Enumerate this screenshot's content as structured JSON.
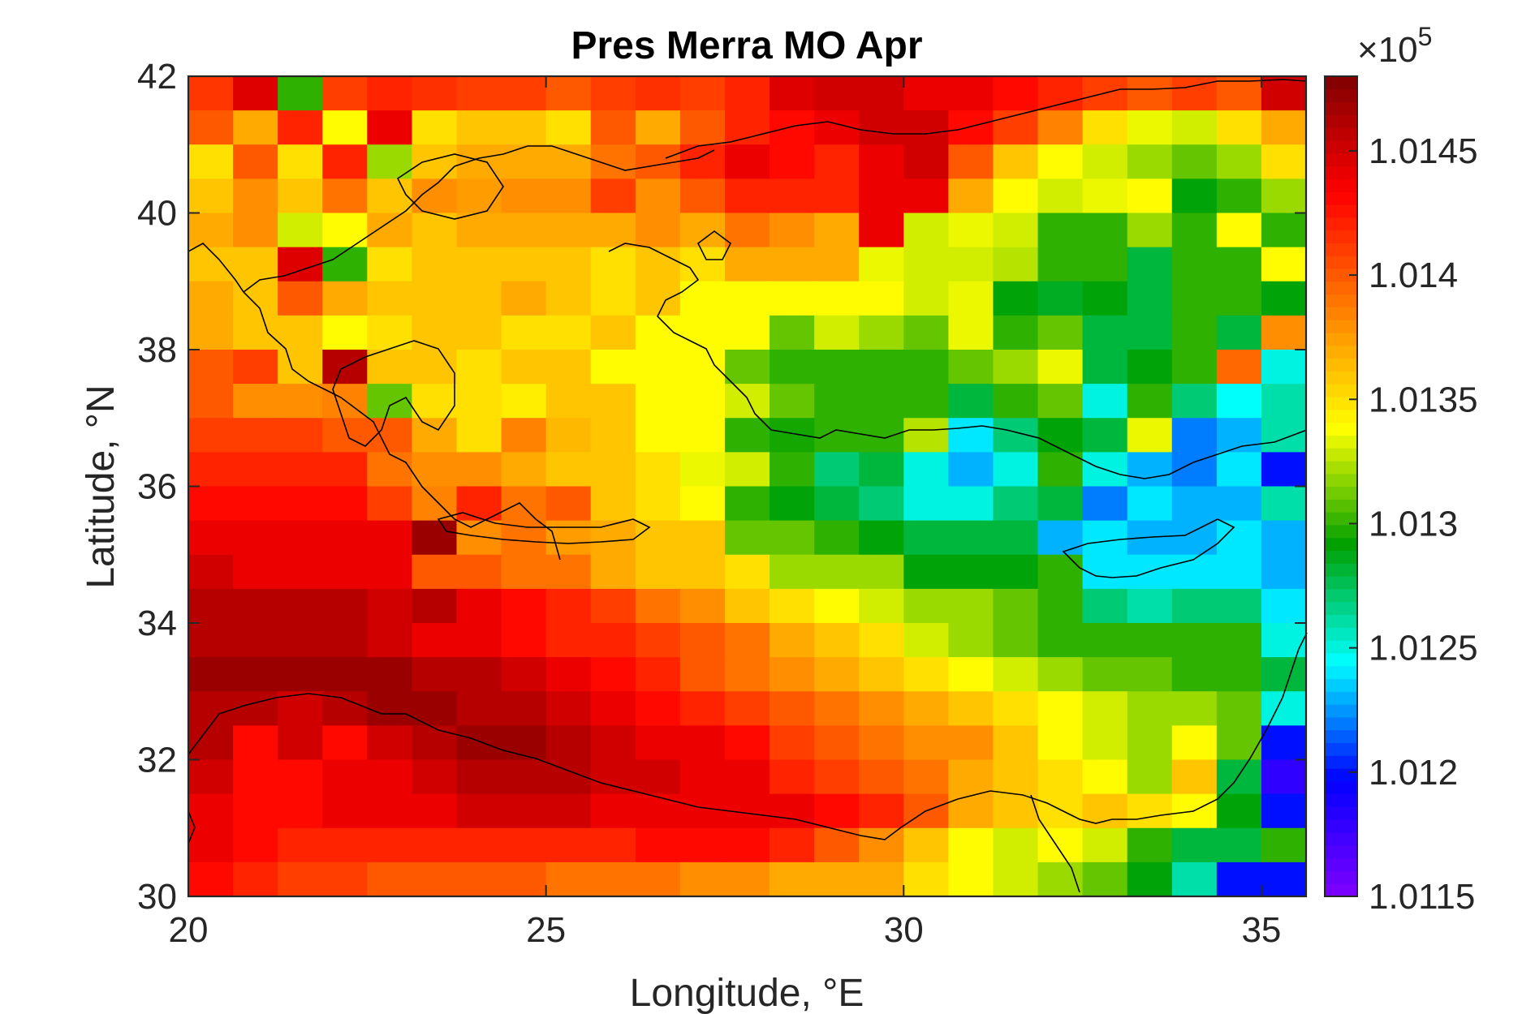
{
  "chart_data": {
    "type": "heatmap",
    "title": "Pres Merra MO Apr",
    "xlabel": "Longitude, °E",
    "ylabel": "Latitude, °N",
    "xlim": [
      20,
      35.625
    ],
    "ylim": [
      30,
      42
    ],
    "x_ticks": [
      "20",
      "25",
      "30",
      "35"
    ],
    "y_ticks": [
      "30",
      "32",
      "34",
      "36",
      "38",
      "40",
      "42"
    ],
    "colorbar": {
      "exponent_label": "×10",
      "exponent": "5",
      "clim": [
        1.0115,
        1.0148
      ],
      "ticks": [
        "1.0115",
        "1.012",
        "1.0125",
        "1.013",
        "1.0135",
        "1.014",
        "1.0145"
      ],
      "colormap": [
        "#8000ff",
        "#0000ff",
        "#00ffff",
        "#00a000",
        "#ffff00",
        "#ff8000",
        "#ff0000",
        "#800000"
      ]
    },
    "grid": {
      "lon_start": 20.0,
      "lon_step": 0.625,
      "lat_start": 30.0,
      "lat_step": 0.5,
      "cols": 25,
      "rows": 24
    },
    "values_row_order": "north-to-south",
    "values": [
      [
        1.01413,
        1.01445,
        1.013,
        1.0141,
        1.0142,
        1.01415,
        1.0141,
        1.0141,
        1.014,
        1.0141,
        1.01415,
        1.0141,
        1.0142,
        1.01445,
        1.0145,
        1.0145,
        1.0144,
        1.0144,
        1.0143,
        1.0142,
        1.0141,
        1.014,
        1.0141,
        1.014,
        1.0145
      ],
      [
        1.014,
        1.0137,
        1.0142,
        1.0134,
        1.0144,
        1.0135,
        1.0136,
        1.0136,
        1.0135,
        1.014,
        1.0137,
        1.014,
        1.0142,
        1.0143,
        1.0144,
        1.0145,
        1.0145,
        1.0143,
        1.0141,
        1.01385,
        1.0135,
        1.01335,
        1.0133,
        1.0135,
        1.0137
      ],
      [
        1.0135,
        1.014,
        1.0135,
        1.0142,
        1.0132,
        1.0136,
        1.0137,
        1.0137,
        1.0137,
        1.0139,
        1.014,
        1.0142,
        1.0144,
        1.0143,
        1.0142,
        1.0144,
        1.0145,
        1.014,
        1.0136,
        1.0134,
        1.0133,
        1.0132,
        1.0131,
        1.0132,
        1.0135
      ],
      [
        1.0136,
        1.0138,
        1.0136,
        1.0139,
        1.0136,
        1.0138,
        1.01375,
        1.0138,
        1.0138,
        1.0141,
        1.0138,
        1.014,
        1.0142,
        1.0142,
        1.0142,
        1.0144,
        1.0144,
        1.0137,
        1.0134,
        1.0133,
        1.01335,
        1.0134,
        1.0129,
        1.013,
        1.0132
      ],
      [
        1.0137,
        1.0138,
        1.0133,
        1.0134,
        1.0137,
        1.0136,
        1.0137,
        1.0137,
        1.0137,
        1.0137,
        1.0138,
        1.0137,
        1.0139,
        1.0138,
        1.0137,
        1.0144,
        1.0133,
        1.01335,
        1.0133,
        1.013,
        1.013,
        1.0132,
        1.013,
        1.0134,
        1.013
      ],
      [
        1.0136,
        1.0136,
        1.01445,
        1.013,
        1.0135,
        1.0136,
        1.0136,
        1.0136,
        1.0136,
        1.0135,
        1.0136,
        1.0135,
        1.0137,
        1.0137,
        1.0137,
        1.01335,
        1.0133,
        1.0133,
        1.01325,
        1.013,
        1.013,
        1.0128,
        1.013,
        1.013,
        1.0134
      ],
      [
        1.0137,
        1.0136,
        1.014,
        1.0137,
        1.0136,
        1.0136,
        1.0136,
        1.0137,
        1.0136,
        1.0135,
        1.0136,
        1.0134,
        1.0134,
        1.0134,
        1.0134,
        1.0134,
        1.0133,
        1.01335,
        1.0129,
        1.01285,
        1.0129,
        1.0128,
        1.013,
        1.013,
        1.0129
      ],
      [
        1.0137,
        1.0136,
        1.0136,
        1.0134,
        1.0135,
        1.0136,
        1.0136,
        1.0135,
        1.0135,
        1.0136,
        1.0134,
        1.0134,
        1.0134,
        1.0131,
        1.0133,
        1.0132,
        1.0131,
        1.01335,
        1.013,
        1.0131,
        1.0128,
        1.0128,
        1.013,
        1.0128,
        1.0138
      ],
      [
        1.014,
        1.0141,
        1.0136,
        1.0146,
        1.0136,
        1.0136,
        1.0135,
        1.0136,
        1.0136,
        1.0134,
        1.0134,
        1.0134,
        1.0131,
        1.013,
        1.013,
        1.013,
        1.013,
        1.0131,
        1.0132,
        1.01335,
        1.0128,
        1.0129,
        1.013,
        1.01395,
        1.0125
      ],
      [
        1.014,
        1.0138,
        1.0138,
        1.01385,
        1.0131,
        1.0135,
        1.0135,
        1.01345,
        1.0136,
        1.0136,
        1.0134,
        1.0134,
        1.0133,
        1.0131,
        1.013,
        1.013,
        1.013,
        1.0128,
        1.013,
        1.0131,
        1.0125,
        1.013,
        1.0127,
        1.01245,
        1.0126
      ],
      [
        1.0141,
        1.0141,
        1.0141,
        1.014,
        1.014,
        1.0137,
        1.0135,
        1.01385,
        1.01365,
        1.0136,
        1.0134,
        1.0134,
        1.013,
        1.01295,
        1.013,
        1.013,
        1.01325,
        1.0124,
        1.0127,
        1.0129,
        1.0128,
        1.01335,
        1.0122,
        1.0123,
        1.0126
      ],
      [
        1.0142,
        1.0142,
        1.0142,
        1.0142,
        1.0139,
        1.0138,
        1.0138,
        1.0137,
        1.0136,
        1.0136,
        1.0135,
        1.01335,
        1.0133,
        1.013,
        1.0127,
        1.0128,
        1.0125,
        1.0123,
        1.0125,
        1.013,
        1.0125,
        1.0123,
        1.0122,
        1.0124,
        1.012
      ],
      [
        1.0143,
        1.0143,
        1.0143,
        1.0143,
        1.0141,
        1.01385,
        1.0142,
        1.0139,
        1.014,
        1.0136,
        1.0135,
        1.0134,
        1.013,
        1.0129,
        1.0128,
        1.0127,
        1.0125,
        1.0125,
        1.0127,
        1.0128,
        1.0122,
        1.0124,
        1.0123,
        1.0123,
        1.0126
      ],
      [
        1.0144,
        1.0144,
        1.0144,
        1.0144,
        1.0144,
        1.0147,
        1.0138,
        1.0139,
        1.01375,
        1.0137,
        1.0136,
        1.0136,
        1.0131,
        1.0131,
        1.013,
        1.0129,
        1.0128,
        1.0128,
        1.0128,
        1.0123,
        1.0124,
        1.0123,
        1.0123,
        1.0124,
        1.0123
      ],
      [
        1.0145,
        1.0144,
        1.0144,
        1.0144,
        1.0144,
        1.014,
        1.014,
        1.0139,
        1.0139,
        1.0137,
        1.0136,
        1.0136,
        1.0135,
        1.0132,
        1.0132,
        1.0132,
        1.0129,
        1.0129,
        1.0129,
        1.013,
        1.0124,
        1.0124,
        1.0124,
        1.0124,
        1.0123
      ],
      [
        1.0146,
        1.0146,
        1.0146,
        1.0146,
        1.0145,
        1.0146,
        1.0144,
        1.0143,
        1.0142,
        1.0141,
        1.0139,
        1.0138,
        1.0136,
        1.0135,
        1.0134,
        1.0133,
        1.0132,
        1.0132,
        1.0131,
        1.013,
        1.0127,
        1.0126,
        1.0127,
        1.0127,
        1.0124
      ],
      [
        1.0146,
        1.0146,
        1.0146,
        1.0146,
        1.0145,
        1.0144,
        1.0144,
        1.0143,
        1.0142,
        1.0142,
        1.0141,
        1.014,
        1.0139,
        1.0137,
        1.0136,
        1.0135,
        1.0133,
        1.0132,
        1.0131,
        1.013,
        1.013,
        1.013,
        1.013,
        1.013,
        1.0125
      ],
      [
        1.0147,
        1.0147,
        1.0147,
        1.0147,
        1.0147,
        1.0146,
        1.0146,
        1.0145,
        1.0144,
        1.0143,
        1.0142,
        1.014,
        1.0139,
        1.0138,
        1.0137,
        1.0136,
        1.0135,
        1.0134,
        1.0133,
        1.0132,
        1.0131,
        1.0131,
        1.013,
        1.013,
        1.0128
      ],
      [
        1.0146,
        1.0146,
        1.0145,
        1.0146,
        1.0147,
        1.0147,
        1.0146,
        1.0146,
        1.0145,
        1.0144,
        1.0143,
        1.0142,
        1.0141,
        1.014,
        1.0139,
        1.0138,
        1.0137,
        1.0136,
        1.0135,
        1.0134,
        1.0133,
        1.0132,
        1.0132,
        1.0131,
        1.0125
      ],
      [
        1.0146,
        1.0143,
        1.0145,
        1.0143,
        1.0145,
        1.0146,
        1.0147,
        1.0147,
        1.0146,
        1.0145,
        1.0144,
        1.0144,
        1.0143,
        1.0141,
        1.014,
        1.0139,
        1.0138,
        1.0138,
        1.0136,
        1.0134,
        1.0133,
        1.0132,
        1.0134,
        1.0131,
        1.012
      ],
      [
        1.0145,
        1.0143,
        1.0143,
        1.0144,
        1.0144,
        1.0145,
        1.0146,
        1.0146,
        1.0146,
        1.0145,
        1.0145,
        1.0144,
        1.0144,
        1.0142,
        1.0141,
        1.014,
        1.0139,
        1.0137,
        1.0136,
        1.0135,
        1.0134,
        1.0132,
        1.0136,
        1.0128,
        1.0118
      ],
      [
        1.0144,
        1.0143,
        1.0143,
        1.0144,
        1.0144,
        1.0144,
        1.0145,
        1.0145,
        1.0145,
        1.0144,
        1.0144,
        1.0144,
        1.0144,
        1.0144,
        1.0143,
        1.0142,
        1.014,
        1.0137,
        1.0136,
        1.0135,
        1.0136,
        1.0135,
        1.0134,
        1.0129,
        1.012
      ],
      [
        1.0144,
        1.0143,
        1.0142,
        1.0142,
        1.0142,
        1.0142,
        1.0142,
        1.0142,
        1.0142,
        1.0142,
        1.0143,
        1.0143,
        1.0143,
        1.0142,
        1.014,
        1.0138,
        1.0136,
        1.0134,
        1.0133,
        1.0134,
        1.0133,
        1.013,
        1.0128,
        1.0128,
        1.013
      ],
      [
        1.0143,
        1.0142,
        1.0141,
        1.0141,
        1.014,
        1.014,
        1.014,
        1.014,
        1.0139,
        1.0139,
        1.0139,
        1.0138,
        1.0138,
        1.0137,
        1.0137,
        1.0137,
        1.0135,
        1.0134,
        1.0133,
        1.0132,
        1.0131,
        1.0129,
        1.0126,
        1.012,
        1.012
      ]
    ]
  }
}
